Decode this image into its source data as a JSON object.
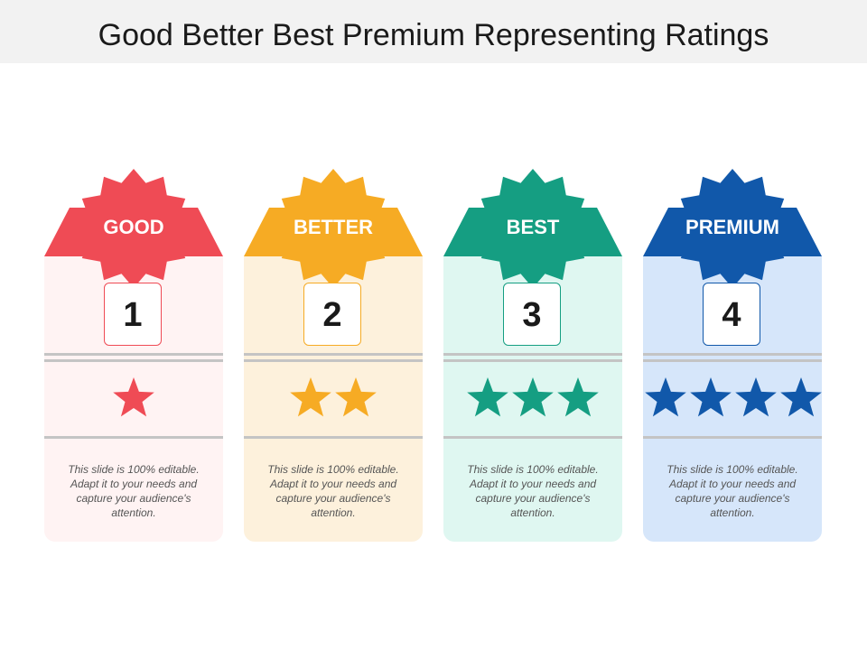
{
  "title": "Good Better Best Premium Representing Ratings",
  "cards": [
    {
      "label": "GOOD",
      "number": "1",
      "stars": 1,
      "description": "This slide is 100% editable. Adapt it to your needs and capture your audience's attention.",
      "color": "#ef4b55",
      "bg": "#fff3f3"
    },
    {
      "label": "BETTER",
      "number": "2",
      "stars": 2,
      "description": "This slide is 100% editable. Adapt it to your needs and capture your audience's attention.",
      "color": "#f6ab24",
      "bg": "#fdf1dc"
    },
    {
      "label": "BEST",
      "number": "3",
      "stars": 3,
      "description": "This slide is 100% editable. Adapt it to your needs and capture your audience's attention.",
      "color": "#159e82",
      "bg": "#dff7f1"
    },
    {
      "label": "PREMIUM",
      "number": "4",
      "stars": 4,
      "description": "This slide is 100% editable. Adapt it to your needs and capture your audience's attention.",
      "color": "#1158aa",
      "bg": "#d6e6fa"
    }
  ]
}
